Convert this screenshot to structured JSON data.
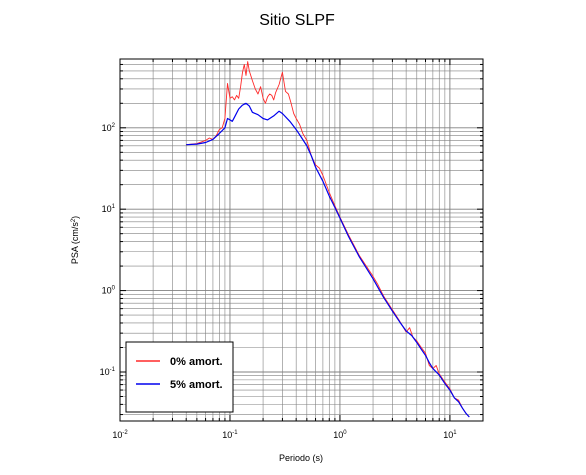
{
  "chart_data": {
    "type": "line",
    "title": "Sitio SLPF",
    "xlabel": "Periodo (s)",
    "ylabel_main": "PSA (cm/s",
    "ylabel_sup": "2",
    "ylabel_end": ")",
    "xscale": "log",
    "yscale": "log",
    "xlim": [
      0.01,
      20
    ],
    "ylim": [
      0.025,
      700
    ],
    "grid": true,
    "legend_position": "bottom-left",
    "x_ticks": [
      {
        "base": "10",
        "exp": "-2",
        "value": 0.01
      },
      {
        "base": "10",
        "exp": "-1",
        "value": 0.1
      },
      {
        "base": "10",
        "exp": "0",
        "value": 1
      },
      {
        "base": "10",
        "exp": "1",
        "value": 10
      }
    ],
    "y_ticks": [
      {
        "base": "10",
        "exp": "-1",
        "value": 0.1
      },
      {
        "base": "10",
        "exp": "0",
        "value": 1
      },
      {
        "base": "10",
        "exp": "1",
        "value": 10
      },
      {
        "base": "10",
        "exp": "2",
        "value": 100
      }
    ],
    "series": [
      {
        "name": "0% amort.",
        "color": "#ff2a2a",
        "points": [
          [
            0.04,
            62
          ],
          [
            0.05,
            64
          ],
          [
            0.06,
            70
          ],
          [
            0.065,
            75
          ],
          [
            0.07,
            72
          ],
          [
            0.075,
            80
          ],
          [
            0.08,
            95
          ],
          [
            0.085,
            100
          ],
          [
            0.09,
            130
          ],
          [
            0.095,
            350
          ],
          [
            0.1,
            230
          ],
          [
            0.105,
            240
          ],
          [
            0.11,
            220
          ],
          [
            0.115,
            250
          ],
          [
            0.12,
            230
          ],
          [
            0.125,
            320
          ],
          [
            0.13,
            480
          ],
          [
            0.135,
            600
          ],
          [
            0.14,
            440
          ],
          [
            0.145,
            650
          ],
          [
            0.15,
            500
          ],
          [
            0.16,
            380
          ],
          [
            0.17,
            300
          ],
          [
            0.18,
            260
          ],
          [
            0.19,
            320
          ],
          [
            0.2,
            230
          ],
          [
            0.21,
            200
          ],
          [
            0.22,
            240
          ],
          [
            0.23,
            260
          ],
          [
            0.24,
            250
          ],
          [
            0.25,
            220
          ],
          [
            0.26,
            270
          ],
          [
            0.28,
            340
          ],
          [
            0.3,
            480
          ],
          [
            0.32,
            280
          ],
          [
            0.34,
            260
          ],
          [
            0.36,
            200
          ],
          [
            0.38,
            150
          ],
          [
            0.4,
            130
          ],
          [
            0.43,
            110
          ],
          [
            0.46,
            85
          ],
          [
            0.5,
            70
          ],
          [
            0.55,
            45
          ],
          [
            0.6,
            35
          ],
          [
            0.65,
            32
          ],
          [
            0.7,
            26
          ],
          [
            0.8,
            16
          ],
          [
            0.9,
            11
          ],
          [
            1.0,
            8
          ],
          [
            1.2,
            4.8
          ],
          [
            1.5,
            2.7
          ],
          [
            2.0,
            1.5
          ],
          [
            2.2,
            1.2
          ],
          [
            2.5,
            0.85
          ],
          [
            3.0,
            0.58
          ],
          [
            3.5,
            0.42
          ],
          [
            4.0,
            0.31
          ],
          [
            4.3,
            0.35
          ],
          [
            4.6,
            0.27
          ],
          [
            5.0,
            0.24
          ],
          [
            5.5,
            0.2
          ],
          [
            6.0,
            0.17
          ],
          [
            6.5,
            0.12
          ],
          [
            7.0,
            0.11
          ],
          [
            7.5,
            0.12
          ],
          [
            8.0,
            0.095
          ],
          [
            9.0,
            0.075
          ],
          [
            10.0,
            0.062
          ],
          [
            11.0,
            0.048
          ],
          [
            12.0,
            0.045
          ],
          [
            13.0,
            0.036
          ],
          [
            14.0,
            0.031
          ],
          [
            15.0,
            0.028
          ]
        ]
      },
      {
        "name": "5% amort.",
        "color": "#0000ee",
        "points": [
          [
            0.04,
            62
          ],
          [
            0.05,
            63
          ],
          [
            0.06,
            66
          ],
          [
            0.07,
            72
          ],
          [
            0.08,
            85
          ],
          [
            0.09,
            100
          ],
          [
            0.095,
            130
          ],
          [
            0.1,
            125
          ],
          [
            0.105,
            120
          ],
          [
            0.11,
            135
          ],
          [
            0.12,
            170
          ],
          [
            0.13,
            190
          ],
          [
            0.14,
            200
          ],
          [
            0.15,
            185
          ],
          [
            0.16,
            155
          ],
          [
            0.18,
            145
          ],
          [
            0.2,
            130
          ],
          [
            0.22,
            125
          ],
          [
            0.25,
            140
          ],
          [
            0.28,
            160
          ],
          [
            0.3,
            150
          ],
          [
            0.35,
            120
          ],
          [
            0.4,
            95
          ],
          [
            0.45,
            75
          ],
          [
            0.5,
            60
          ],
          [
            0.55,
            45
          ],
          [
            0.6,
            33
          ],
          [
            0.7,
            22
          ],
          [
            0.8,
            14.5
          ],
          [
            0.9,
            10.5
          ],
          [
            1.0,
            7.8
          ],
          [
            1.2,
            4.6
          ],
          [
            1.5,
            2.6
          ],
          [
            2.0,
            1.4
          ],
          [
            2.5,
            0.82
          ],
          [
            3.0,
            0.56
          ],
          [
            3.5,
            0.41
          ],
          [
            4.0,
            0.32
          ],
          [
            4.5,
            0.28
          ],
          [
            5.0,
            0.23
          ],
          [
            5.5,
            0.19
          ],
          [
            6.0,
            0.16
          ],
          [
            6.5,
            0.13
          ],
          [
            7.0,
            0.11
          ],
          [
            8.0,
            0.092
          ],
          [
            9.0,
            0.072
          ],
          [
            10.0,
            0.06
          ],
          [
            11.0,
            0.048
          ],
          [
            12.0,
            0.043
          ],
          [
            13.0,
            0.036
          ],
          [
            14.0,
            0.031
          ],
          [
            15.0,
            0.028
          ]
        ]
      }
    ]
  }
}
